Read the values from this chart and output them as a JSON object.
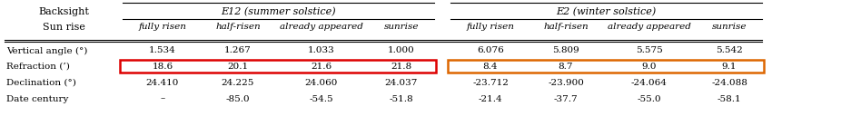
{
  "backsight_label": "Backsight",
  "sunrise_label": "Sun rise",
  "e12_group_label": "E12 (summer solstice)",
  "e2_group_label": "E2 (winter solstice)",
  "sub_cols": [
    "fully risen",
    "half-risen",
    "already appeared",
    "sunrise"
  ],
  "row_labels": [
    "Vertical angle (°)",
    "Refraction (’)",
    "Declination (°)",
    "Date century"
  ],
  "e12_data": [
    [
      "1.534",
      "1.267",
      "1.033",
      "1.000"
    ],
    [
      "18.6",
      "20.1",
      "21.6",
      "21.8"
    ],
    [
      "24.410",
      "24.225",
      "24.060",
      "24.037"
    ],
    [
      "–",
      "−85.0",
      "−54.5",
      "−51.8"
    ]
  ],
  "e2_data": [
    [
      "6.076",
      "5.809",
      "5.575",
      "5.542"
    ],
    [
      "8.4",
      "8.7",
      "9.0",
      "9.1"
    ],
    [
      "-23.712",
      "-23.900",
      "-24.064",
      "-24.088"
    ],
    [
      "-21.4",
      "-37.7",
      "-55.0",
      "-58.1"
    ]
  ],
  "highlight_row": 1,
  "highlight_color_e12": "#dd0000",
  "highlight_color_e2": "#dd6600",
  "bg_color": "#ffffff",
  "font_size": 7.5,
  "header_font_size": 8.0
}
